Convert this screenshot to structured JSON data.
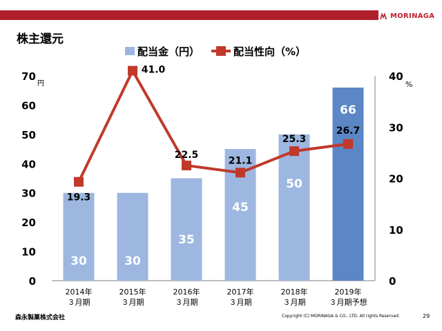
{
  "header": {
    "title": "株主還元",
    "brand": "MORINAGA"
  },
  "footer": {
    "company": "森永製菓株式会社",
    "copyright": "Copyright (C) MORINAGA & CO., LTD. All rights Reserved.",
    "page_number": "29"
  },
  "colors": {
    "brand_red": "#b21f2c",
    "bar": "#9db7e0",
    "bar_highlight": "#5b87c6",
    "line": "#c0392b"
  },
  "chart_data": {
    "type": "bar",
    "title": "",
    "categories": [
      [
        "2014年",
        "３月期"
      ],
      [
        "2015年",
        "３月期"
      ],
      [
        "2016年",
        "３月期"
      ],
      [
        "2017年",
        "３月期"
      ],
      [
        "2018年",
        "３月期"
      ],
      [
        "2019年",
        "３月期予想"
      ]
    ],
    "series": [
      {
        "name": "配当金（円）",
        "type": "bar",
        "axis": "left",
        "values": [
          30,
          30,
          35,
          45,
          50,
          66
        ],
        "labels": [
          "30",
          "30",
          "35",
          "45",
          "50",
          "66"
        ],
        "highlight_index": 5
      },
      {
        "name": "配当性向（%）",
        "type": "line",
        "axis": "right",
        "values": [
          19.3,
          41.0,
          22.5,
          21.1,
          25.3,
          26.7
        ],
        "labels": [
          "19.3",
          "41.0",
          "22.5",
          "21.1",
          "25.3",
          "26.7"
        ]
      }
    ],
    "y_left": {
      "unit": "円",
      "range": [
        0,
        70
      ],
      "ticks": [
        0,
        10,
        20,
        30,
        40,
        50,
        60,
        70
      ]
    },
    "y_right": {
      "unit": "%",
      "range": [
        0,
        40
      ],
      "ticks": [
        0,
        10,
        20,
        30,
        40
      ]
    },
    "legend_position": "top",
    "grid": false
  }
}
